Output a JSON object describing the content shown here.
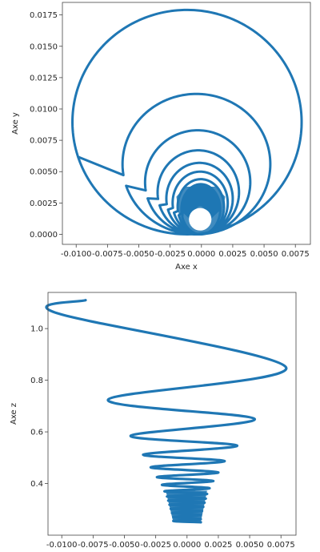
{
  "colors": {
    "series": "#1f77b4",
    "axes": "#444444",
    "text": "#262626"
  },
  "chart_data": [
    {
      "type": "scatter",
      "title": "",
      "xlabel": "Axe x",
      "ylabel": "Axe y",
      "xlim": [
        -0.0111,
        0.0087
      ],
      "ylim": [
        -0.0008,
        0.0185
      ],
      "xticks": [
        -0.01,
        -0.0075,
        -0.005,
        -0.0025,
        0.0,
        0.0025,
        0.005,
        0.0075
      ],
      "xtick_labels": [
        "-0.0100",
        "-0.0075",
        "-0.0050",
        "-0.0025",
        "0.0000",
        "0.0025",
        "0.0050",
        "0.0075"
      ],
      "yticks": [
        0.0,
        0.0025,
        0.005,
        0.0075,
        0.01,
        0.0125,
        0.015,
        0.0175
      ],
      "ytick_labels": [
        "0.0000",
        "0.0025",
        "0.0050",
        "0.0075",
        "0.0100",
        "0.0125",
        "0.0150",
        "0.0175"
      ],
      "grid": false,
      "trajectory": {
        "start": [
          -0.009,
          0.005
        ],
        "loops": [
          {
            "xmin": -0.0103,
            "xmax": 0.008,
            "ymax": 0.0179
          },
          {
            "xmin": -0.0063,
            "xmax": 0.0055,
            "ymax": 0.0112
          },
          {
            "xmin": -0.0045,
            "xmax": 0.0039,
            "ymax": 0.0083
          },
          {
            "xmin": -0.0035,
            "xmax": 0.003,
            "ymax": 0.0067
          },
          {
            "xmin": -0.0028,
            "xmax": 0.0025,
            "ymax": 0.0057
          },
          {
            "xmin": -0.0023,
            "xmax": 0.0021,
            "ymax": 0.005
          },
          {
            "xmin": -0.0019,
            "xmax": 0.0018,
            "ymax": 0.0044
          },
          {
            "xmin": -0.0016,
            "xmax": 0.0015,
            "ymax": 0.004
          }
        ],
        "inner_gap_center": [
          -0.0001,
          0.0012
        ],
        "inner_gap_radius": 0.0009
      }
    },
    {
      "type": "scatter",
      "title": "",
      "xlabel": "",
      "ylabel": "Axe z",
      "xlim": [
        -0.0111,
        0.0087
      ],
      "ylim": [
        0.2,
        1.14
      ],
      "xticks": [
        -0.01,
        -0.0075,
        -0.005,
        -0.0025,
        0.0,
        0.0025,
        0.005,
        0.0075
      ],
      "xtick_labels": [
        "-0.0100",
        "-0.0075",
        "-0.0050",
        "-0.0025",
        "0.0000",
        "0.0025",
        "0.0050",
        "0.0075"
      ],
      "yticks": [
        0.4,
        0.6,
        0.8,
        1.0
      ],
      "ytick_labels": [
        "0.4",
        "0.6",
        "0.8",
        "1.0"
      ],
      "grid": false,
      "trajectory": {
        "points": [
          [
            -0.0081,
            1.11
          ],
          [
            -0.0104,
            1.06
          ],
          [
            0.0079,
            0.85
          ],
          [
            -0.0063,
            0.725
          ],
          [
            0.0054,
            0.65
          ],
          [
            -0.0045,
            0.585
          ],
          [
            0.004,
            0.547
          ],
          [
            -0.0035,
            0.512
          ],
          [
            0.003,
            0.487
          ],
          [
            -0.0029,
            0.463
          ],
          [
            0.0025,
            0.443
          ],
          [
            -0.0024,
            0.425
          ],
          [
            0.0021,
            0.41
          ],
          [
            -0.002,
            0.395
          ],
          [
            0.0018,
            0.382
          ],
          [
            -0.0018,
            0.37
          ],
          [
            0.0016,
            0.36
          ],
          [
            -0.0016,
            0.35
          ],
          [
            0.0015,
            0.342
          ],
          [
            -0.0015,
            0.334
          ],
          [
            0.0014,
            0.326
          ],
          [
            -0.0014,
            0.318
          ],
          [
            0.0013,
            0.31
          ],
          [
            -0.0013,
            0.302
          ],
          [
            0.0012,
            0.294
          ],
          [
            -0.0012,
            0.286
          ],
          [
            0.0011,
            0.278
          ],
          [
            -0.0011,
            0.27
          ],
          [
            0.0011,
            0.262
          ],
          [
            -0.0011,
            0.255
          ],
          [
            0.0011,
            0.25
          ]
        ]
      }
    }
  ]
}
